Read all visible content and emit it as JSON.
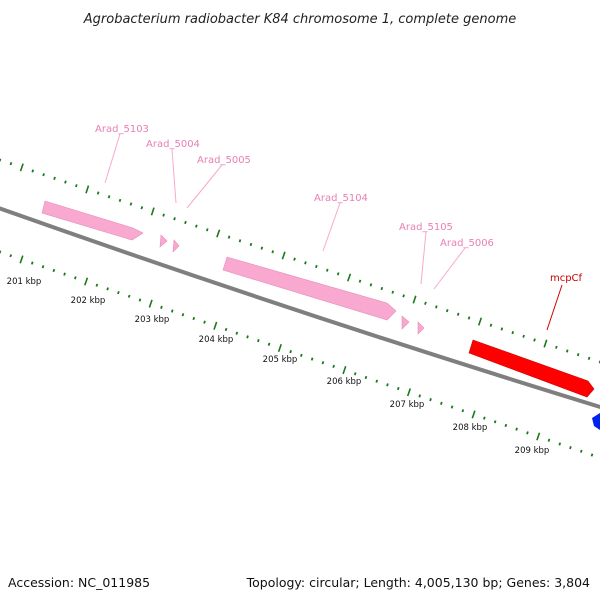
{
  "title": "Agrobacterium radiobacter K84 chromosome 1, complete genome",
  "footer": {
    "accession": "Accession: NC_011985",
    "topology": "Topology: circular; Length: 4,005,130 bp; Genes: 3,804"
  },
  "colors": {
    "backbone": "#808080",
    "tick": "#1a7a1a",
    "gene_pink": "#f9a8cf",
    "gene_pink_label": "#e97fb3",
    "gene_red": "#ff0000",
    "gene_red_label": "#cc0000",
    "gene_blue": "#0022ee"
  },
  "genes": [
    {
      "name": "Arad_5103",
      "color": "pink"
    },
    {
      "name": "Arad_5004",
      "color": "pink"
    },
    {
      "name": "Arad_5005",
      "color": "pink"
    },
    {
      "name": "Arad_5104",
      "color": "pink"
    },
    {
      "name": "Arad_5105",
      "color": "pink"
    },
    {
      "name": "Arad_5006",
      "color": "pink"
    },
    {
      "name": "mcpCf",
      "color": "red"
    }
  ],
  "kbp_labels": [
    "201 kbp",
    "202 kbp",
    "203 kbp",
    "204 kbp",
    "205 kbp",
    "206 kbp",
    "207 kbp",
    "208 kbp",
    "209 kbp"
  ]
}
